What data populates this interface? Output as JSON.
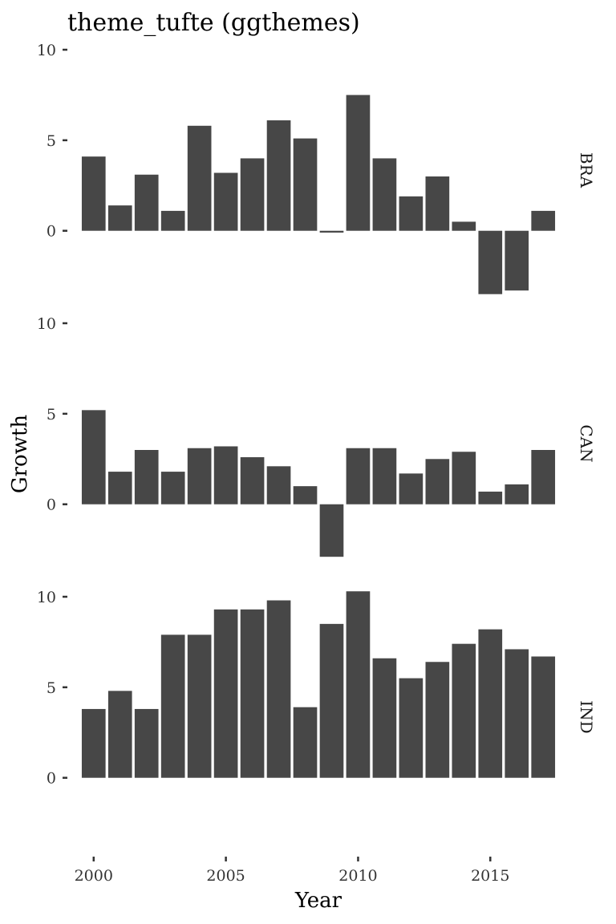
{
  "chart_data": {
    "type": "bar",
    "title": "theme_tufte (ggthemes)",
    "xlabel": "Year",
    "ylabel": "Growth",
    "x": [
      2000,
      2001,
      2002,
      2003,
      2004,
      2005,
      2006,
      2007,
      2008,
      2009,
      2010,
      2011,
      2012,
      2013,
      2014,
      2015,
      2016,
      2017
    ],
    "x_ticks": [
      "2000",
      "2005",
      "2010",
      "2015"
    ],
    "y_ticks": [
      "0",
      "5",
      "10"
    ],
    "ylim": [
      -4,
      10
    ],
    "xlim": [
      1999.4,
      2017.6
    ],
    "grid": false,
    "bar_color": "#474747",
    "facets": [
      {
        "label": "BRA",
        "values": [
          4.1,
          1.4,
          3.1,
          1.1,
          5.8,
          3.2,
          4.0,
          6.1,
          5.1,
          -0.1,
          7.5,
          4.0,
          1.9,
          3.0,
          0.5,
          -3.5,
          -3.3,
          1.1
        ]
      },
      {
        "label": "CAN",
        "values": [
          5.2,
          1.8,
          3.0,
          1.8,
          3.1,
          3.2,
          2.6,
          2.1,
          1.0,
          -2.9,
          3.1,
          3.1,
          1.7,
          2.5,
          2.9,
          0.7,
          1.1,
          3.0
        ]
      },
      {
        "label": "IND",
        "values": [
          3.8,
          4.8,
          3.8,
          7.9,
          7.9,
          9.3,
          9.3,
          9.8,
          3.9,
          8.5,
          10.3,
          6.6,
          5.5,
          6.4,
          7.4,
          8.2,
          7.1,
          6.7
        ]
      }
    ]
  }
}
